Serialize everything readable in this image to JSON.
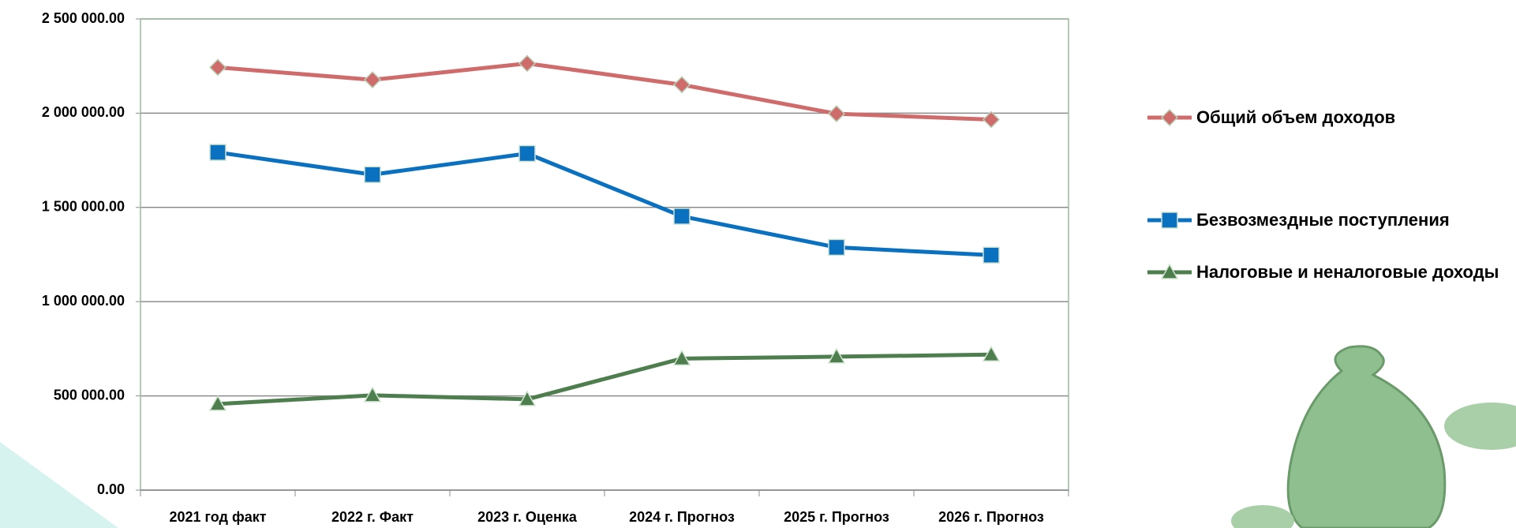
{
  "chart_data": {
    "type": "line",
    "categories": [
      "2021 год факт",
      "2022 г. Факт",
      "2023 г. Оценка",
      "2024 г. Прогноз",
      "2025 г. Прогноз",
      "2026 г. Прогноз"
    ],
    "series": [
      {
        "name": "Общий объем доходов",
        "color": "#d06b6b",
        "marker": "diamond",
        "values": [
          2243000,
          2177000,
          2264000,
          2151000,
          1997000,
          1966000
        ]
      },
      {
        "name": "Безвозмездные поступления",
        "color": "#0a70c0",
        "marker": "square",
        "values": [
          1792000,
          1674000,
          1786000,
          1453000,
          1288000,
          1247000
        ]
      },
      {
        "name": "Налоговые и неналоговые доходы",
        "color": "#4e7e4e",
        "marker": "triangle",
        "values": [
          457000,
          503000,
          482000,
          698000,
          708000,
          719000
        ]
      }
    ],
    "ylim": [
      0,
      2500000
    ],
    "yticks": [
      {
        "value": 0,
        "label": "0.00"
      },
      {
        "value": 500000,
        "label": "500 000.00"
      },
      {
        "value": 1000000,
        "label": "1 000 000.00"
      },
      {
        "value": 1500000,
        "label": "1 500 000.00"
      },
      {
        "value": 2000000,
        "label": "2 000 000.00"
      },
      {
        "value": 2500000,
        "label": "2 500 000.00"
      }
    ],
    "grid": true,
    "legend": "right"
  }
}
